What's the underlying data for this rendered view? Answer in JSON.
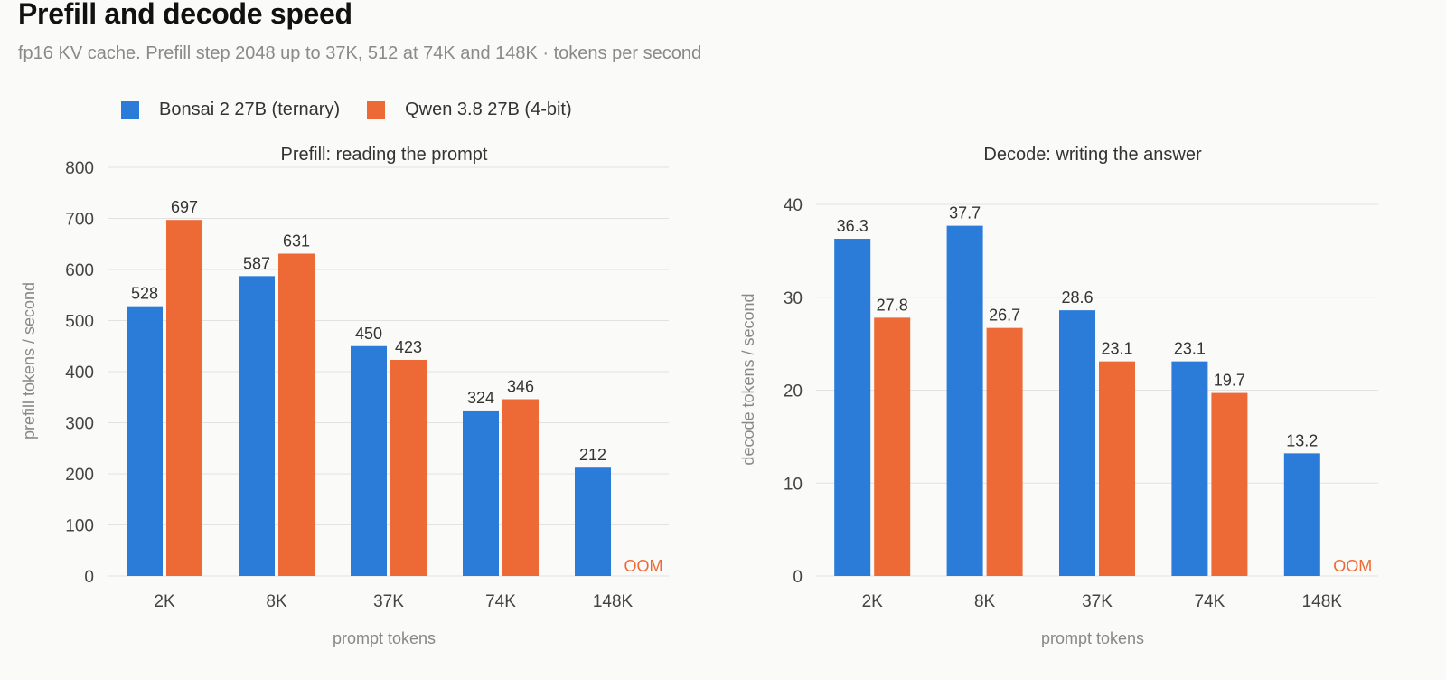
{
  "title": "Prefill and decode speed",
  "subtitle": "fp16 KV cache. Prefill step 2048 up to 37K, 512 at 74K and 148K · tokens per second",
  "colors": {
    "series_a": "#2b7bd9",
    "series_b": "#ed6a36",
    "oom": "#ed6a36",
    "grid": "#e2e2e0",
    "axis_text": "#444444",
    "label_text": "#888888"
  },
  "legend": [
    {
      "name": "Bonsai 2 27B (ternary)",
      "color": "#2b7bd9"
    },
    {
      "name": "Qwen 3.8 27B (4-bit)",
      "color": "#ed6a36"
    }
  ],
  "chart_data": [
    {
      "type": "bar",
      "title": "Prefill: reading the prompt",
      "xlabel": "prompt tokens",
      "ylabel": "prefill tokens / second",
      "categories": [
        "2K",
        "8K",
        "37K",
        "74K",
        "148K"
      ],
      "ylim": [
        0,
        800
      ],
      "yticks": [
        0,
        100,
        200,
        300,
        400,
        500,
        600,
        700,
        800
      ],
      "grid": true,
      "series": [
        {
          "name": "Bonsai 2 27B (ternary)",
          "values": [
            528,
            587,
            450,
            324,
            212
          ],
          "labels": [
            "528",
            "587",
            "450",
            "324",
            "212"
          ]
        },
        {
          "name": "Qwen 3.8 27B (4-bit)",
          "values": [
            697,
            631,
            423,
            346,
            null
          ],
          "labels": [
            "697",
            "631",
            "423",
            "346",
            null
          ]
        }
      ],
      "annotations": [
        {
          "category": "148K",
          "series": "Qwen 3.8 27B (4-bit)",
          "text": "OOM"
        }
      ]
    },
    {
      "type": "bar",
      "title": "Decode: writing the answer",
      "xlabel": "prompt tokens",
      "ylabel": "decode tokens / second",
      "categories": [
        "2K",
        "8K",
        "37K",
        "74K",
        "148K"
      ],
      "ylim": [
        0,
        40
      ],
      "yticks": [
        0,
        10,
        20,
        30,
        40
      ],
      "grid": true,
      "series": [
        {
          "name": "Bonsai 2 27B (ternary)",
          "values": [
            36.3,
            37.7,
            28.6,
            23.1,
            13.2
          ],
          "labels": [
            "36.3",
            "37.7",
            "28.6",
            "23.1",
            "13.2"
          ]
        },
        {
          "name": "Qwen 3.8 27B (4-bit)",
          "values": [
            27.8,
            26.7,
            23.1,
            19.7,
            null
          ],
          "labels": [
            "27.8",
            "26.7",
            "23.1",
            "19.7",
            null
          ]
        }
      ],
      "annotations": [
        {
          "category": "148K",
          "series": "Qwen 3.8 27B (4-bit)",
          "text": "OOM"
        }
      ]
    }
  ]
}
